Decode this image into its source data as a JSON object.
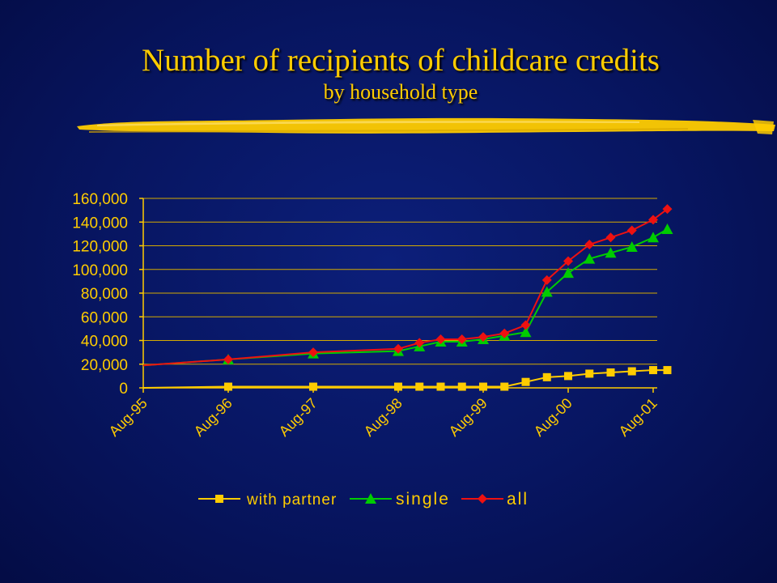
{
  "slide": {
    "title": "Number of recipients of childcare credits",
    "subtitle": "by household type",
    "title_color": "#ffcc00"
  },
  "chart_data": {
    "type": "line",
    "ylim": [
      0,
      160000
    ],
    "yticks": [
      0,
      20000,
      40000,
      60000,
      80000,
      100000,
      120000,
      140000,
      160000
    ],
    "ytick_labels": [
      "0",
      "20,000",
      "40,000",
      "60,000",
      "80,000",
      "100,000",
      "120,000",
      "140,000",
      "160,000"
    ],
    "x_range": [
      "Aug-95",
      "Aug-01"
    ],
    "xtick_labels": [
      "Aug-95",
      "Aug-96",
      "Aug-97",
      "Aug-98",
      "Aug-99",
      "Aug-00",
      "Aug-01"
    ],
    "grid": "horizontal",
    "legend_position": "bottom",
    "series": [
      {
        "name": "with partner",
        "color": "#ffcc00",
        "marker": "square",
        "points": [
          [
            "Aug-95",
            0
          ],
          [
            "Aug-96",
            1000
          ],
          [
            "Aug-97",
            1000
          ],
          [
            "Aug-98",
            1000
          ],
          [
            "Nov-98",
            1000
          ],
          [
            "Feb-99",
            1000
          ],
          [
            "May-99",
            1000
          ],
          [
            "Aug-99",
            1000
          ],
          [
            "Nov-99",
            1000
          ],
          [
            "Feb-00",
            5000
          ],
          [
            "May-00",
            9000
          ],
          [
            "Aug-00",
            10000
          ],
          [
            "Nov-00",
            12000
          ],
          [
            "Feb-01",
            13000
          ],
          [
            "May-01",
            14000
          ],
          [
            "Aug-01",
            15000
          ],
          [
            "Oct-01",
            15000
          ]
        ]
      },
      {
        "name": "single",
        "color": "#00cc00",
        "marker": "triangle",
        "points": [
          [
            "Aug-95",
            19000
          ],
          [
            "Aug-96",
            24000
          ],
          [
            "Aug-97",
            29000
          ],
          [
            "Aug-98",
            31000
          ],
          [
            "Nov-98",
            35000
          ],
          [
            "Feb-99",
            39000
          ],
          [
            "May-99",
            39000
          ],
          [
            "Aug-99",
            41000
          ],
          [
            "Nov-99",
            44000
          ],
          [
            "Feb-00",
            47000
          ],
          [
            "May-00",
            81000
          ],
          [
            "Aug-00",
            97000
          ],
          [
            "Nov-00",
            109000
          ],
          [
            "Feb-01",
            114000
          ],
          [
            "May-01",
            119000
          ],
          [
            "Aug-01",
            127000
          ],
          [
            "Oct-01",
            134000
          ]
        ]
      },
      {
        "name": "all",
        "color": "#ee1111",
        "marker": "diamond",
        "points": [
          [
            "Aug-95",
            19000
          ],
          [
            "Aug-96",
            24000
          ],
          [
            "Aug-97",
            30000
          ],
          [
            "Aug-98",
            33000
          ],
          [
            "Nov-98",
            38000
          ],
          [
            "Feb-99",
            41000
          ],
          [
            "May-99",
            41000
          ],
          [
            "Aug-99",
            43000
          ],
          [
            "Nov-99",
            46000
          ],
          [
            "Feb-00",
            53000
          ],
          [
            "May-00",
            91000
          ],
          [
            "Aug-00",
            107000
          ],
          [
            "Nov-00",
            121000
          ],
          [
            "Feb-01",
            127000
          ],
          [
            "May-01",
            133000
          ],
          [
            "Aug-01",
            142000
          ],
          [
            "Oct-01",
            151000
          ]
        ]
      }
    ]
  }
}
